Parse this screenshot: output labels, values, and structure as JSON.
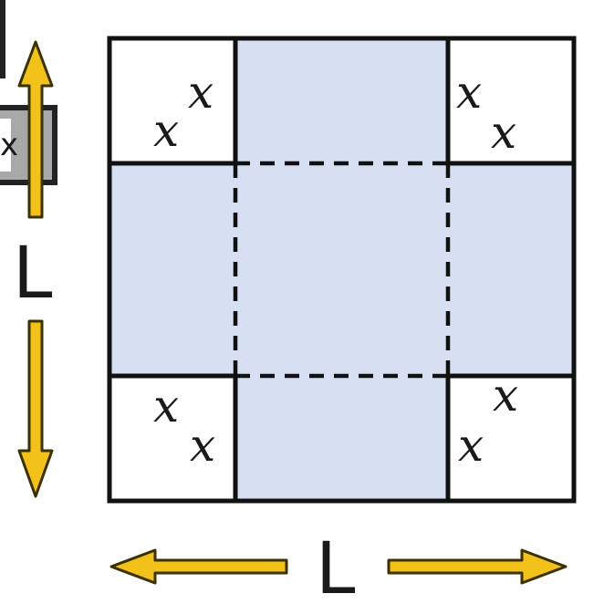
{
  "corner_labels": {
    "top_left": [
      "x",
      "x"
    ],
    "top_right": [
      "x",
      "x"
    ],
    "bottom_left": [
      "x",
      "x"
    ],
    "bottom_right": [
      "x",
      "x"
    ]
  },
  "side_label": "L",
  "bottom_label": "L",
  "clipped_box_label": "x",
  "colors": {
    "flap_fill": "#d6e0f2",
    "outline": "#111111",
    "arrow_fill": "#f2c21b",
    "arrow_stroke": "#3a3200",
    "clipped_box_fill": "#a8a8a8"
  }
}
